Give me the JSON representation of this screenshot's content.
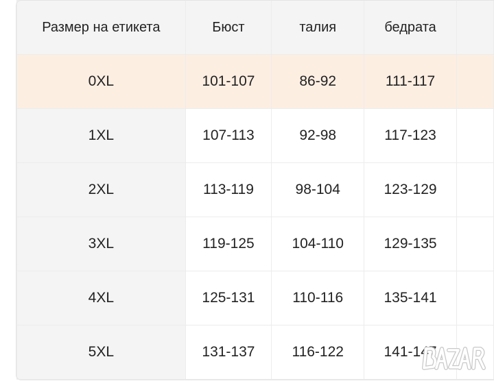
{
  "table": {
    "headers": [
      "Размер на етикета",
      "Бюст",
      "талия",
      "бедрата",
      ""
    ],
    "rows": [
      [
        "0XL",
        "101-107",
        "86-92",
        "111-117",
        ""
      ],
      [
        "1XL",
        "107-113",
        "92-98",
        "117-123",
        ""
      ],
      [
        "2XL",
        "113-119",
        "98-104",
        "123-129",
        ""
      ],
      [
        "3XL",
        "119-125",
        "104-110",
        "129-135",
        ""
      ],
      [
        "4XL",
        "125-131",
        "110-116",
        "135-141",
        ""
      ],
      [
        "5XL",
        "131-137",
        "116-122",
        "141-147",
        ""
      ]
    ],
    "highlight_color": "#fdeee2"
  },
  "watermark": "BAZAR"
}
